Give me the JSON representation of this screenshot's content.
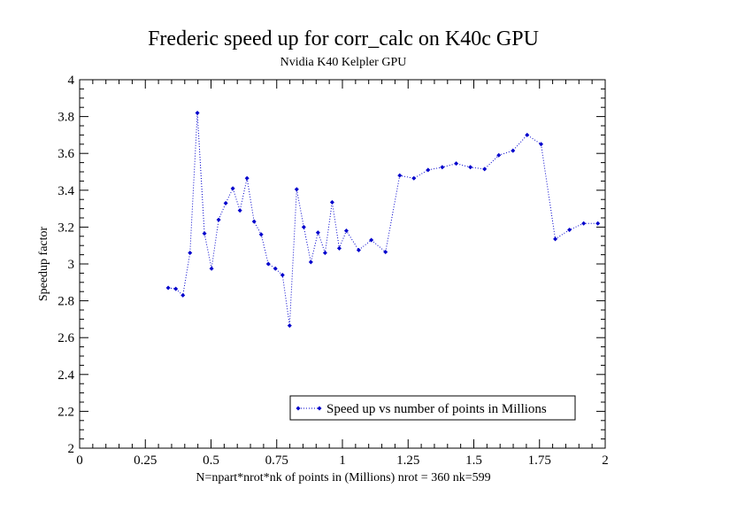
{
  "chart_data": {
    "type": "line",
    "title": "Frederic speed up for corr_calc on K40c GPU",
    "subtitle": "Nvidia K40 Kelpler GPU",
    "xlabel": "N=npart*nrot*nk of points in (Millions) nrot = 360 nk=599",
    "ylabel": "Speedup factor",
    "xlim": [
      0,
      2
    ],
    "ylim": [
      2,
      4
    ],
    "x_ticks": [
      0,
      0.25,
      0.5,
      0.75,
      1,
      1.25,
      1.5,
      1.75,
      2
    ],
    "x_tick_labels": [
      "0",
      "0.25",
      "0.5",
      "0.75",
      "1",
      "1.25",
      "1.5",
      "1.75",
      "2"
    ],
    "y_ticks": [
      2,
      2.2,
      2.4,
      2.6,
      2.8,
      3,
      3.2,
      3.4,
      3.6,
      3.8,
      4
    ],
    "y_tick_labels": [
      "2",
      "2.2",
      "2.4",
      "2.6",
      "2.8",
      "3",
      "3.2",
      "3.4",
      "3.6",
      "3.8",
      "4"
    ],
    "grid": false,
    "legend_position": "bottom-right",
    "series": [
      {
        "name": "Speed up vs number of points in Millions",
        "color": "#0000cc",
        "line_style": "dotted",
        "marker": "diamond",
        "points": [
          [
            0.337,
            2.87
          ],
          [
            0.366,
            2.865
          ],
          [
            0.393,
            2.83
          ],
          [
            0.42,
            3.06
          ],
          [
            0.448,
            3.82
          ],
          [
            0.475,
            3.165
          ],
          [
            0.502,
            2.975
          ],
          [
            0.529,
            3.24
          ],
          [
            0.556,
            3.33
          ],
          [
            0.583,
            3.41
          ],
          [
            0.61,
            3.29
          ],
          [
            0.637,
            3.465
          ],
          [
            0.664,
            3.23
          ],
          [
            0.691,
            3.16
          ],
          [
            0.718,
            3.0
          ],
          [
            0.745,
            2.975
          ],
          [
            0.772,
            2.94
          ],
          [
            0.799,
            2.665
          ],
          [
            0.826,
            3.405
          ],
          [
            0.853,
            3.2
          ],
          [
            0.88,
            3.01
          ],
          [
            0.907,
            3.17
          ],
          [
            0.934,
            3.06
          ],
          [
            0.961,
            3.335
          ],
          [
            0.988,
            3.085
          ],
          [
            1.015,
            3.18
          ],
          [
            1.062,
            3.075
          ],
          [
            1.11,
            3.13
          ],
          [
            1.164,
            3.065
          ],
          [
            1.218,
            3.48
          ],
          [
            1.272,
            3.465
          ],
          [
            1.326,
            3.51
          ],
          [
            1.38,
            3.525
          ],
          [
            1.433,
            3.545
          ],
          [
            1.487,
            3.525
          ],
          [
            1.541,
            3.515
          ],
          [
            1.595,
            3.59
          ],
          [
            1.649,
            3.615
          ],
          [
            1.703,
            3.7
          ],
          [
            1.756,
            3.65
          ],
          [
            1.81,
            3.135
          ],
          [
            1.864,
            3.185
          ],
          [
            1.918,
            3.22
          ],
          [
            1.972,
            3.22
          ]
        ]
      }
    ]
  }
}
